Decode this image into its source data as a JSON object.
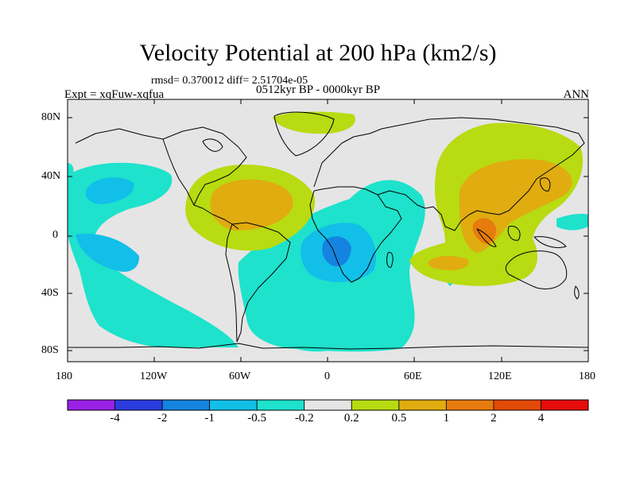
{
  "title": "Velocity Potential at 200 hPa (km2/s)",
  "stats": "rmsd= 0.370012 diff= 2.51704e-05",
  "period": "0512kyr BP - 0000kyr BP",
  "experiment": "Expt = xqFuw-xqfua",
  "season": "ANN",
  "map": {
    "projection": "cylindrical equidistant",
    "lon_range": [
      -180,
      180
    ],
    "lat_range": [
      -90,
      90
    ],
    "lat_ticks": [
      "80N",
      "40N",
      "0",
      "40S",
      "80S"
    ],
    "lon_ticks": [
      "180",
      "120W",
      "60W",
      "0",
      "60E",
      "120E",
      "180"
    ],
    "features": [
      {
        "region": "North Pacific",
        "sign": "negative",
        "level": "-0.5 to -1"
      },
      {
        "region": "Tropical Pacific / South Pacific",
        "sign": "negative",
        "level": "-0.2 to -1"
      },
      {
        "region": "Central America / Tropical Atlantic",
        "sign": "positive",
        "level": "0.5 to 1"
      },
      {
        "region": "Greenland",
        "sign": "positive",
        "level": "0.2 to 0.5"
      },
      {
        "region": "Africa / South Atlantic / Indian Ocean",
        "sign": "negative",
        "level": "-0.2 to -2"
      },
      {
        "region": "Asia / Maritime Continent",
        "sign": "positive",
        "level": "0.2 to 2"
      }
    ]
  },
  "colorbar": {
    "labels": [
      "-4",
      "-2",
      "-1",
      "-0.5",
      "-0.2",
      "0.2",
      "0.5",
      "1",
      "2",
      "4"
    ],
    "colors": [
      "#9a21e6",
      "#2b3ce0",
      "#1583e0",
      "#12bfe8",
      "#1ee2cc",
      "#e5e5e5",
      "#b8db12",
      "#e0ac10",
      "#e67c0d",
      "#e24a08",
      "#e60c0c"
    ]
  }
}
